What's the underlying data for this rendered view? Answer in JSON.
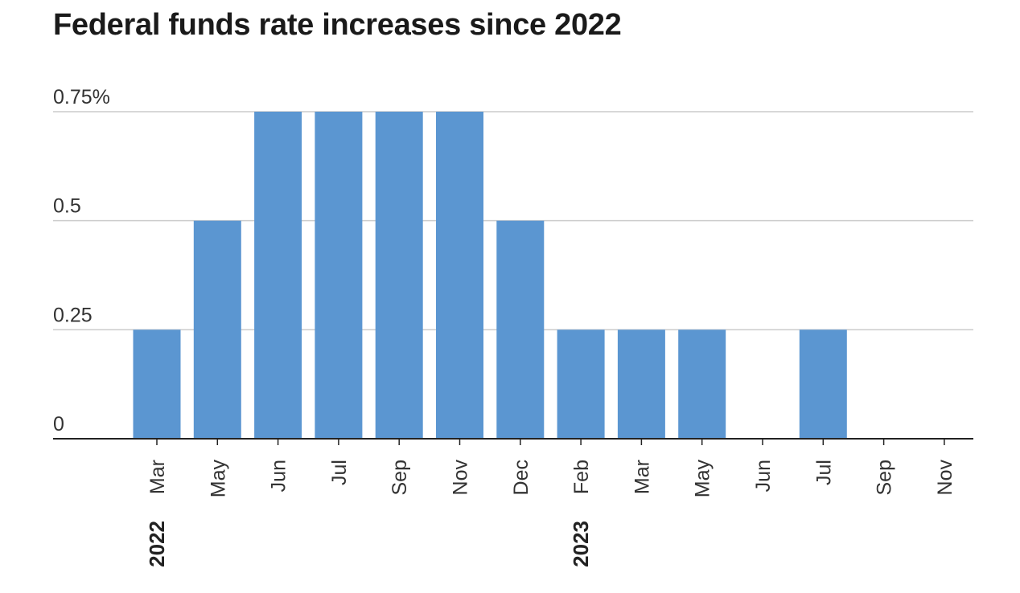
{
  "chart_data": {
    "type": "bar",
    "title": "Federal funds rate increases since 2022",
    "xlabel": "",
    "ylabel": "",
    "ylim": [
      0,
      0.75
    ],
    "y_ticks": [
      0,
      0.25,
      0.5,
      0.75
    ],
    "y_tick_labels": [
      "0",
      "0.25",
      "0.5",
      "0.75%"
    ],
    "grid": true,
    "categories": [
      "Mar",
      "May",
      "Jun",
      "Jul",
      "Sep",
      "Nov",
      "Dec",
      "Feb",
      "Mar",
      "May",
      "Jun",
      "Jul",
      "Sep",
      "Nov"
    ],
    "years": [
      "2022",
      "2022",
      "2022",
      "2022",
      "2022",
      "2022",
      "2022",
      "2023",
      "2023",
      "2023",
      "2023",
      "2023",
      "2023",
      "2023"
    ],
    "year_labels": [
      {
        "label": "2022",
        "category_index": 0
      },
      {
        "label": "2023",
        "category_index": 7
      }
    ],
    "values": [
      0.25,
      0.5,
      0.75,
      0.75,
      0.75,
      0.75,
      0.5,
      0.25,
      0.25,
      0.25,
      0,
      0.25,
      0,
      0
    ]
  },
  "colors": {
    "bar": "#5b96d1",
    "grid": "#cccccc",
    "axis": "#222222",
    "text": "#333333"
  }
}
